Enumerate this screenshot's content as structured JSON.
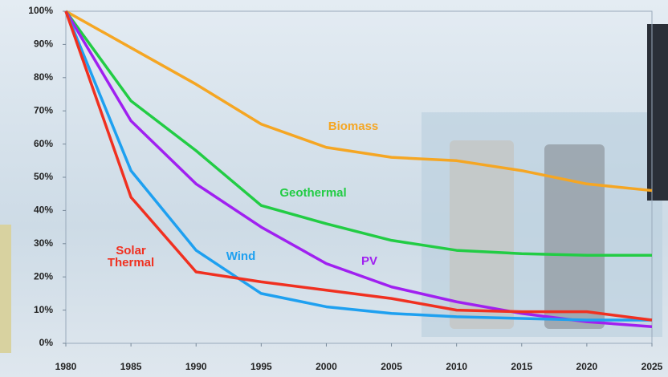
{
  "chart_data": {
    "type": "line",
    "x": [
      1980,
      1985,
      1990,
      1995,
      2000,
      2005,
      2010,
      2015,
      2020,
      2025
    ],
    "xlim": [
      1980,
      2025
    ],
    "xticks": [
      1980,
      1985,
      1990,
      1995,
      2000,
      2005,
      2010,
      2015,
      2020,
      2025
    ],
    "ylim": [
      0,
      100
    ],
    "yticks": [
      {
        "value": 0,
        "label": "0%"
      },
      {
        "value": 10,
        "label": "10%"
      },
      {
        "value": 20,
        "label": "20%"
      },
      {
        "value": 30,
        "label": "30%"
      },
      {
        "value": 40,
        "label": "40%"
      },
      {
        "value": 50,
        "label": "50%"
      },
      {
        "value": 60,
        "label": "60%"
      },
      {
        "value": 70,
        "label": "70%"
      },
      {
        "value": 80,
        "label": "80%"
      },
      {
        "value": 90,
        "label": "90%"
      },
      {
        "value": 100,
        "label": "100%"
      }
    ],
    "series": [
      {
        "name": "Biomass",
        "color": "#f5a623",
        "values": [
          100,
          89,
          78,
          66,
          59,
          56,
          55,
          52,
          48,
          46
        ]
      },
      {
        "name": "Geothermal",
        "color": "#22cc44",
        "values": [
          100,
          73,
          58,
          41.5,
          36,
          31,
          28,
          27,
          26.5,
          26.5
        ]
      },
      {
        "name": "PV",
        "color": "#a020f0",
        "values": [
          100,
          67,
          48,
          35,
          24,
          17,
          12.5,
          9,
          6.5,
          5
        ]
      },
      {
        "name": "Wind",
        "color": "#1ea0f0",
        "values": [
          100,
          52,
          28,
          15,
          11,
          9,
          8,
          7.5,
          7,
          7
        ]
      },
      {
        "name": "Solar Thermal",
        "color": "#f03020",
        "values": [
          100,
          44,
          21.5,
          18.5,
          16,
          13.5,
          10,
          9.5,
          9.5,
          7
        ]
      }
    ]
  }
}
